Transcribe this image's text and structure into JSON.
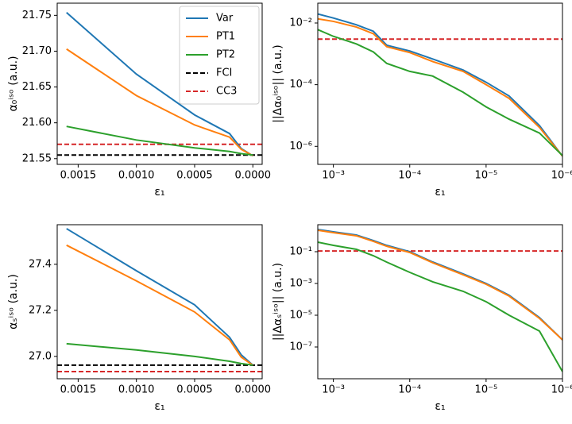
{
  "chart_data": [
    {
      "type": "line",
      "xlabel": "ε₁",
      "ylabel": "α₀ⁱˢᵒ (a.u.)",
      "xscale": "linear",
      "yscale": "linear",
      "xlim": [
        0.00168,
        -8e-05
      ],
      "ylim": [
        21.542,
        21.767
      ],
      "xticks": [
        0.0015,
        {
          "value": 0.001,
          "label": "0.0010"
        },
        0.0005,
        {
          "value": 0,
          "label": "0.0000"
        }
      ],
      "yticks": [
        21.55,
        {
          "value": 21.6,
          "label": "21.60"
        },
        21.65,
        {
          "value": 21.7,
          "label": "21.70"
        },
        21.75
      ],
      "x": [
        0.0016,
        0.001,
        0.0005,
        0.0002,
        0.0001,
        0
      ],
      "series": [
        {
          "name": "Var",
          "color": "#1f77b4",
          "values": [
            21.754,
            21.668,
            21.611,
            21.585,
            21.564,
            21.554
          ]
        },
        {
          "name": "PT1",
          "color": "#ff7f0e",
          "values": [
            21.703,
            21.638,
            21.597,
            21.58,
            21.563,
            21.554
          ]
        },
        {
          "name": "PT2",
          "color": "#2ca02c",
          "values": [
            21.595,
            21.576,
            21.565,
            21.56,
            21.557,
            21.555
          ]
        }
      ],
      "hlines": [
        {
          "name": "FCI",
          "color": "#000000",
          "value": 21.555
        },
        {
          "name": "CC3",
          "color": "#d62728",
          "value": 21.57
        }
      ],
      "legend": "upper right"
    },
    {
      "type": "line",
      "xlabel": "ε₁",
      "ylabel": "||Δα₀ⁱˢᵒ|| (a.u.)",
      "xscale": "log",
      "yscale": "log",
      "xlim": [
        0.0016,
        1e-06
      ],
      "ylim": [
        2.6e-07,
        0.044
      ],
      "xticks": [
        {
          "value": 0.001,
          "label": "10⁻³"
        },
        {
          "value": 0.0001,
          "label": "10⁻⁴"
        },
        {
          "value": 1e-05,
          "label": "10⁻⁵"
        },
        {
          "value": 1e-06,
          "label": "10⁻⁶"
        }
      ],
      "yticks": [
        {
          "value": 0.01,
          "label": "10⁻²"
        },
        {
          "value": 0.0001,
          "label": "10⁻⁴"
        },
        {
          "value": 1e-06,
          "label": "10⁻⁶"
        }
      ],
      "x": [
        0.0016,
        0.001,
        0.0005,
        0.0003,
        0.0002,
        0.0001,
        5e-05,
        2e-05,
        1e-05,
        5e-06,
        2e-06,
        1e-06
      ],
      "series": [
        {
          "color": "#1f77b4",
          "values": [
            0.0196,
            0.0145,
            0.0088,
            0.0054,
            0.0019,
            0.00124,
            0.00068,
            0.0003,
            0.00012,
            4.3e-05,
            4.7e-06,
            4.8e-07
          ]
        },
        {
          "color": "#ff7f0e",
          "values": [
            0.0137,
            0.0113,
            0.0074,
            0.0045,
            0.0017,
            0.0011,
            0.00056,
            0.00027,
            0.0001,
            3.6e-05,
            4.1e-06,
            4.8e-07
          ]
        },
        {
          "color": "#2ca02c",
          "values": [
            0.0061,
            0.0037,
            0.0021,
            0.00116,
            0.00049,
            0.00027,
            0.00019,
            5.7e-05,
            1.9e-05,
            7.6e-06,
            2.7e-06,
            5e-07
          ]
        }
      ],
      "hlines": [
        {
          "color": "#d62728",
          "value": 0.003
        }
      ]
    },
    {
      "type": "line",
      "xlabel": "ε₁",
      "ylabel": "αₛⁱˢᵒ (a.u.)",
      "xscale": "linear",
      "yscale": "linear",
      "xlim": [
        0.00168,
        -8e-05
      ],
      "ylim": [
        26.903,
        27.572
      ],
      "xticks": [
        0.0015,
        {
          "value": 0.001,
          "label": "0.0010"
        },
        0.0005,
        {
          "value": 0,
          "label": "0.0000"
        }
      ],
      "yticks": [
        {
          "value": 27,
          "label": "27.0"
        },
        27.2,
        27.4
      ],
      "x": [
        0.0016,
        0.001,
        0.0005,
        0.0002,
        0.0001,
        0
      ],
      "series": [
        {
          "color": "#1f77b4",
          "values": [
            27.555,
            27.372,
            27.224,
            27.083,
            27.007,
            26.962
          ]
        },
        {
          "color": "#ff7f0e",
          "values": [
            27.483,
            27.328,
            27.193,
            27.072,
            26.997,
            26.962
          ]
        },
        {
          "color": "#2ca02c",
          "values": [
            27.055,
            27.028,
            27.0,
            26.979,
            26.969,
            26.962
          ]
        }
      ],
      "hlines": [
        {
          "color": "#000000",
          "value": 26.962
        },
        {
          "color": "#d62728",
          "value": 26.934
        }
      ]
    },
    {
      "type": "line",
      "xlabel": "ε₁",
      "ylabel": "||Δαₛⁱˢᵒ|| (a.u.)",
      "xscale": "log",
      "yscale": "log",
      "xlim": [
        0.0016,
        1e-06
      ],
      "ylim": [
        1e-09,
        5
      ],
      "xticks": [
        {
          "value": 0.001,
          "label": "10⁻³"
        },
        {
          "value": 0.0001,
          "label": "10⁻⁴"
        },
        {
          "value": 1e-05,
          "label": "10⁻⁵"
        },
        {
          "value": 1e-06,
          "label": "10⁻⁶"
        }
      ],
      "yticks": [
        {
          "value": 0.1,
          "label": "10⁻¹"
        },
        {
          "value": 0.001,
          "label": "10⁻³"
        },
        {
          "value": 1e-05,
          "label": "10⁻⁵"
        },
        {
          "value": 1e-07,
          "label": "10⁻⁷"
        }
      ],
      "x": [
        0.0016,
        0.001,
        0.0005,
        0.0003,
        0.0002,
        0.0001,
        5e-05,
        2e-05,
        1e-05,
        5e-06,
        2e-06,
        1e-06
      ],
      "series": [
        {
          "color": "#1f77b4",
          "values": [
            2.51,
            1.78,
            1.12,
            0.5,
            0.25,
            0.1,
            0.0224,
            0.004,
            0.001,
            0.00018,
            7.1e-06,
            2.8e-07
          ]
        },
        {
          "color": "#ff7f0e",
          "values": [
            2.24,
            1.58,
            1.0,
            0.447,
            0.22,
            0.089,
            0.02,
            0.0035,
            0.00089,
            0.00016,
            6.3e-06,
            2.8e-07
          ]
        },
        {
          "color": "#2ca02c",
          "values": [
            0.398,
            0.251,
            0.141,
            0.056,
            0.022,
            0.005,
            0.00126,
            0.00032,
            7.1e-05,
            1e-05,
            1e-06,
            2.8e-09
          ]
        }
      ],
      "hlines": [
        {
          "color": "#d62728",
          "value": 0.11
        }
      ]
    }
  ]
}
